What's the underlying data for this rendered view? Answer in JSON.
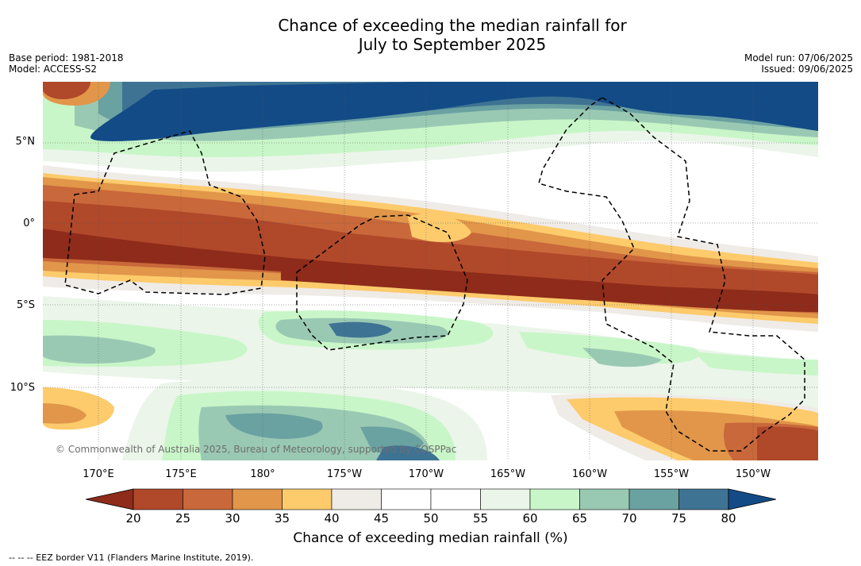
{
  "title_line1": "Chance of exceeding the median rainfall for",
  "title_line2": "July to September 2025",
  "base_period": "Base period: 1981-2018",
  "model": "Model: ACCESS-S2",
  "model_run": "Model run: 07/06/2025",
  "issued": "Issued: 09/06/2025",
  "lat_labels": [
    "5°N",
    "0°",
    "5°S",
    "10°S"
  ],
  "lon_labels": [
    "170°E",
    "175°E",
    "180°",
    "175°W",
    "170°W",
    "165°W",
    "160°W",
    "155°W",
    "150°W"
  ],
  "copyright": "© Commonwealth of Australia 2025, Bureau of Meteorology, supported by COSPPac",
  "colorbar": {
    "ticks": [
      "20",
      "25",
      "30",
      "35",
      "40",
      "45",
      "50",
      "55",
      "60",
      "65",
      "70",
      "75",
      "80"
    ],
    "colors": [
      "#8e2b1a",
      "#b0482a",
      "#c9683a",
      "#e19649",
      "#fdcb6c",
      "#efebe7",
      "#ffffff",
      "#ffffff",
      "#ebf5ea",
      "#c9f6c8",
      "#9ac9b3",
      "#6aa1a1",
      "#3f7393",
      "#134b87"
    ],
    "title": "Chance of exceeding median rainfall (%)"
  },
  "legend_note": "-- -- -- EEZ border V11 (Flanders Marine Institute, 2019)."
}
